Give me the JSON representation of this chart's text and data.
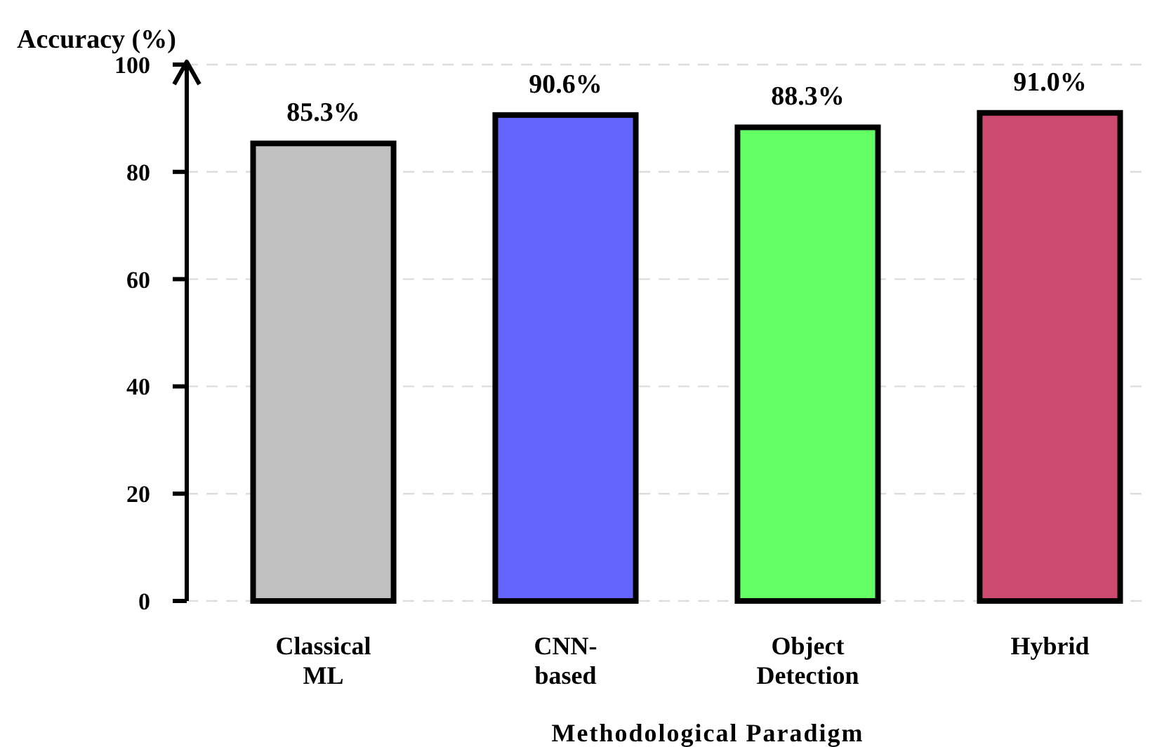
{
  "chart_data": {
    "type": "bar",
    "xlabel": "Methodological Paradigm",
    "ylabel": "Accuracy (%)",
    "categories": [
      "Classical\nML",
      "CNN-\nbased",
      "Object\nDetection",
      "Hybrid"
    ],
    "values": [
      85.3,
      90.6,
      88.3,
      91.0
    ],
    "colors": [
      "#c0c0c0",
      "#6464ff",
      "#64ff64",
      "#cc4a70"
    ],
    "value_labels": [
      "85.3%",
      "90.6%",
      "88.3%",
      "91.0%"
    ],
    "ylim": [
      0,
      100
    ],
    "yticks": [
      0,
      20,
      40,
      60,
      80,
      100
    ],
    "grid": "y"
  }
}
